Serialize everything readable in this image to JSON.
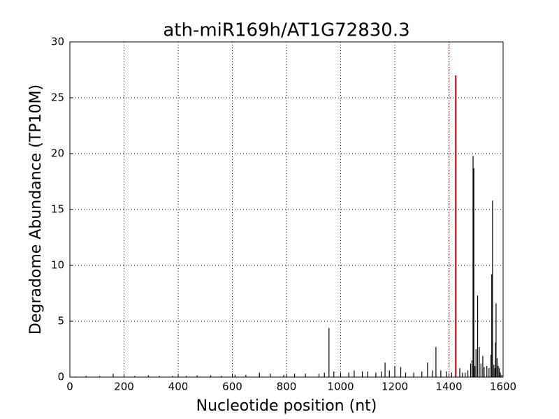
{
  "chart_data": {
    "type": "stem",
    "title": "ath-miR169h/AT1G72830.3",
    "x_label": "Nucleotide position (nt)",
    "y_label": "Degradome Abundance (TP10M)",
    "xlim": [
      0,
      1600
    ],
    "ylim": [
      0,
      30
    ],
    "xticks": [
      0,
      200,
      400,
      600,
      800,
      1000,
      1200,
      1400,
      1600
    ],
    "yticks": [
      0,
      5,
      10,
      15,
      20,
      25,
      30
    ],
    "grid": true,
    "marker_x": 1401,
    "marker_color": "#d62728",
    "series": [
      {
        "color": "#000000",
        "x": [
          20,
          60,
          110,
          160,
          200,
          240,
          290,
          330,
          380,
          430,
          470,
          520,
          560,
          610,
          650,
          700,
          740,
          790,
          830,
          870,
          920,
          940,
          957,
          975,
          1000,
          1030,
          1050,
          1080,
          1100,
          1130,
          1150,
          1164,
          1180,
          1200,
          1222,
          1240,
          1270,
          1300,
          1321,
          1340,
          1352,
          1370,
          1390,
          1410,
          1440,
          1450,
          1460,
          1470,
          1480,
          1485,
          1489,
          1492,
          1496,
          1500,
          1506,
          1512,
          1518,
          1525,
          1530,
          1540,
          1548,
          1555,
          1558,
          1561,
          1566,
          1570,
          1572,
          1574,
          1578,
          1582,
          1586,
          1590,
          1595
        ],
        "values": [
          0.05,
          0.1,
          0.1,
          0.3,
          0.1,
          0.1,
          0.15,
          0.1,
          0.1,
          0.1,
          0.15,
          0.15,
          0.1,
          0.2,
          0.2,
          0.4,
          0.3,
          0.2,
          0.3,
          0.3,
          0.3,
          0.4,
          4.4,
          0.5,
          0.4,
          0.4,
          0.6,
          0.5,
          0.5,
          0.4,
          0.5,
          1.3,
          0.6,
          1.0,
          0.9,
          0.4,
          0.4,
          0.5,
          1.3,
          0.6,
          2.7,
          0.6,
          0.5,
          0.4,
          0.8,
          0.4,
          0.4,
          0.6,
          1.2,
          1.5,
          19.8,
          18.7,
          1.0,
          2.5,
          7.3,
          2.7,
          1.2,
          1.9,
          0.9,
          1.0,
          0.8,
          2.0,
          9.2,
          15.8,
          1.1,
          0.8,
          3.1,
          6.6,
          1.7,
          1.0,
          0.8,
          0.4,
          0.2
        ]
      },
      {
        "color": "#d62728",
        "x": [
          1425
        ],
        "values": [
          27
        ]
      }
    ]
  }
}
